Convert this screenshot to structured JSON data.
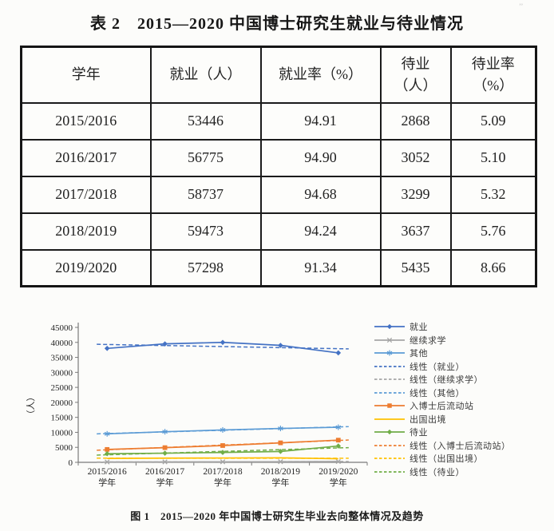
{
  "page": {
    "table_title": "表 2　2015—2020 中国博士研究生就业与待业情况",
    "figure_caption": "图 1　2015—2020 年中国博士研究生毕业去向整体情况及趋势",
    "scan_mark": "’’"
  },
  "table": {
    "headers": [
      "学年",
      "就业（人）",
      "就业率（%）",
      "待业\n（人）",
      "待业率\n（%）"
    ],
    "rows": [
      [
        "2015/2016",
        "53446",
        "94.91",
        "2868",
        "5.09"
      ],
      [
        "2016/2017",
        "56775",
        "94.90",
        "3052",
        "5.10"
      ],
      [
        "2017/2018",
        "58737",
        "94.68",
        "3299",
        "5.32"
      ],
      [
        "2018/2019",
        "59473",
        "94.24",
        "3637",
        "5.76"
      ],
      [
        "2019/2020",
        "57298",
        "91.34",
        "5435",
        "8.66"
      ]
    ]
  },
  "chart_data": {
    "type": "line",
    "categories": [
      "2015/2016",
      "2016/2017",
      "2017/2018",
      "2018/2019",
      "2019/2020"
    ],
    "x_sublabel": "学年",
    "ylabel": "（人）",
    "ylim": [
      0,
      45000
    ],
    "ytick_step": 5000,
    "grid": false,
    "legend_position": "right",
    "series": [
      {
        "name": "就业",
        "color": "#4472C4",
        "marker": "diamond",
        "values": [
          38000,
          39500,
          40000,
          39000,
          36500
        ]
      },
      {
        "name": "继续求学",
        "color": "#A5A5A5",
        "marker": "x",
        "values": [
          120,
          150,
          180,
          210,
          260
        ]
      },
      {
        "name": "其他",
        "color": "#5B9BD5",
        "marker": "asterisk",
        "values": [
          9500,
          10200,
          10800,
          11300,
          11700
        ]
      },
      {
        "name": "入博士后流动站",
        "color": "#ED7D31",
        "marker": "square",
        "values": [
          4300,
          4900,
          5600,
          6500,
          7400
        ]
      },
      {
        "name": "出国出境",
        "color": "#FFC000",
        "marker": "none",
        "values": [
          1300,
          1400,
          1450,
          1500,
          1200
        ]
      },
      {
        "name": "待业",
        "color": "#70AD47",
        "marker": "diamond",
        "values": [
          2868,
          3052,
          3299,
          3637,
          5435
        ]
      }
    ],
    "legend": [
      {
        "label": "就业",
        "color": "#4472C4",
        "dash": false,
        "marker": "diamond"
      },
      {
        "label": "继续求学",
        "color": "#A5A5A5",
        "dash": false,
        "marker": "x"
      },
      {
        "label": "其他",
        "color": "#5B9BD5",
        "dash": false,
        "marker": "asterisk"
      },
      {
        "label": "线性（就业）",
        "color": "#4472C4",
        "dash": true,
        "marker": "none"
      },
      {
        "label": "线性（继续求学）",
        "color": "#A5A5A5",
        "dash": true,
        "marker": "none"
      },
      {
        "label": "线性（其他）",
        "color": "#5B9BD5",
        "dash": true,
        "marker": "none"
      },
      {
        "label": "入博士后流动站",
        "color": "#ED7D31",
        "dash": false,
        "marker": "square"
      },
      {
        "label": "出国出境",
        "color": "#FFC000",
        "dash": false,
        "marker": "none"
      },
      {
        "label": "待业",
        "color": "#70AD47",
        "dash": false,
        "marker": "diamond"
      },
      {
        "label": "线性（入博士后流动站）",
        "color": "#ED7D31",
        "dash": true,
        "marker": "none"
      },
      {
        "label": "线性（出国出境）",
        "color": "#FFC000",
        "dash": true,
        "marker": "none"
      },
      {
        "label": "线性（待业）",
        "color": "#70AD47",
        "dash": true,
        "marker": "none"
      }
    ]
  }
}
